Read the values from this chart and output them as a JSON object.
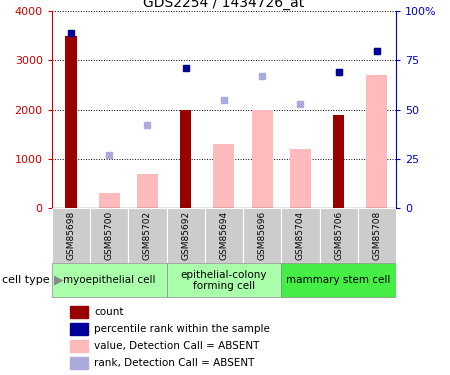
{
  "title": "GDS2254 / 1434726_at",
  "samples": [
    "GSM85698",
    "GSM85700",
    "GSM85702",
    "GSM85692",
    "GSM85694",
    "GSM85696",
    "GSM85704",
    "GSM85706",
    "GSM85708"
  ],
  "count_values": [
    3500,
    null,
    null,
    2000,
    null,
    null,
    null,
    1900,
    null
  ],
  "count_color": "#990000",
  "absent_value_values": [
    null,
    300,
    700,
    null,
    1300,
    2000,
    1200,
    null,
    2700
  ],
  "absent_value_color": "#ffbbbb",
  "dark_blue_pct": {
    "0": 89,
    "3": 71,
    "7": 69,
    "8": 80
  },
  "absent_rank_pct": {
    "1": 27,
    "2": 42,
    "4": 55,
    "5": 67,
    "6": 53,
    "7": 69,
    "8": 80
  },
  "dark_blue_color": "#000099",
  "absent_rank_color": "#aaaadd",
  "ylim_left": [
    0,
    4000
  ],
  "ylim_right": [
    0,
    100
  ],
  "yticks_left": [
    0,
    1000,
    2000,
    3000,
    4000
  ],
  "ytick_labels_left": [
    "0",
    "1000",
    "2000",
    "3000",
    "4000"
  ],
  "yticks_right": [
    0,
    25,
    50,
    75,
    100
  ],
  "ytick_labels_right": [
    "0",
    "25",
    "50",
    "75",
    "100%"
  ],
  "left_axis_color": "#cc0000",
  "right_axis_color": "#0000cc",
  "cell_type_groups": [
    {
      "label": "myoepithelial cell",
      "start": 0,
      "end": 2,
      "color": "#aaffaa"
    },
    {
      "label": "epithelial-colony\nforming cell",
      "start": 3,
      "end": 5,
      "color": "#aaffaa"
    },
    {
      "label": "mammary stem cell",
      "start": 6,
      "end": 8,
      "color": "#44ee44"
    }
  ],
  "legend_labels": [
    "count",
    "percentile rank within the sample",
    "value, Detection Call = ABSENT",
    "rank, Detection Call = ABSENT"
  ],
  "legend_colors": [
    "#990000",
    "#000099",
    "#ffbbbb",
    "#aaaadd"
  ]
}
